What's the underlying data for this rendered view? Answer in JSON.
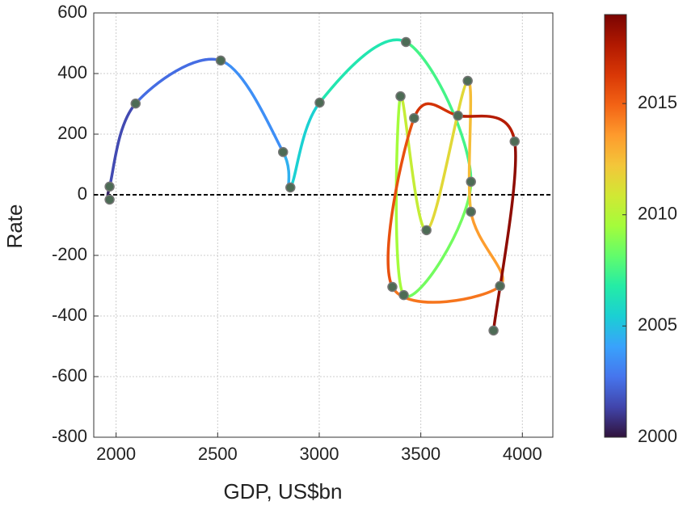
{
  "chart_data": {
    "type": "scatter",
    "x_label": "GDP, US$bn",
    "y_label": "Rate",
    "x": [
      1968,
      1968,
      2096,
      2515,
      2822,
      2858,
      3002,
      3427,
      3747,
      3416,
      3400,
      3528,
      3731,
      3747,
      3890,
      3360,
      3467,
      3683,
      3962,
      3858
    ],
    "y": [
      -16,
      27,
      301,
      443,
      141,
      24,
      304,
      504,
      43,
      -331,
      325,
      -117,
      376,
      -56,
      -301,
      -304,
      253,
      261,
      176,
      -448
    ],
    "year": [
      2000,
      2001,
      2002,
      2003,
      2004,
      2005,
      2006,
      2007,
      2008,
      2009,
      2010,
      2011,
      2012,
      2013,
      2014,
      2015,
      2016,
      2017,
      2018,
      2019
    ],
    "point_color": "#4d6b55",
    "xlim": [
      1890,
      4150
    ],
    "xticks": [
      2000,
      2500,
      3000,
      3500,
      4000
    ],
    "ylim": [
      -800,
      600
    ],
    "yticks": [
      -800,
      -600,
      -400,
      -200,
      0,
      200,
      400,
      600
    ],
    "reference_line": 0,
    "grid": true,
    "clim": [
      2000,
      2019
    ],
    "cticks": [
      2000,
      2005,
      2010,
      2015
    ],
    "colormap": [
      "#30123b",
      "#4145ab",
      "#4675ed",
      "#39a2fc",
      "#1bcfd4",
      "#24eca6",
      "#61fc6c",
      "#a4fc3b",
      "#d1e834",
      "#f3c63a",
      "#fe9b2d",
      "#f36315",
      "#d93806",
      "#b11901",
      "#7a0402"
    ]
  }
}
